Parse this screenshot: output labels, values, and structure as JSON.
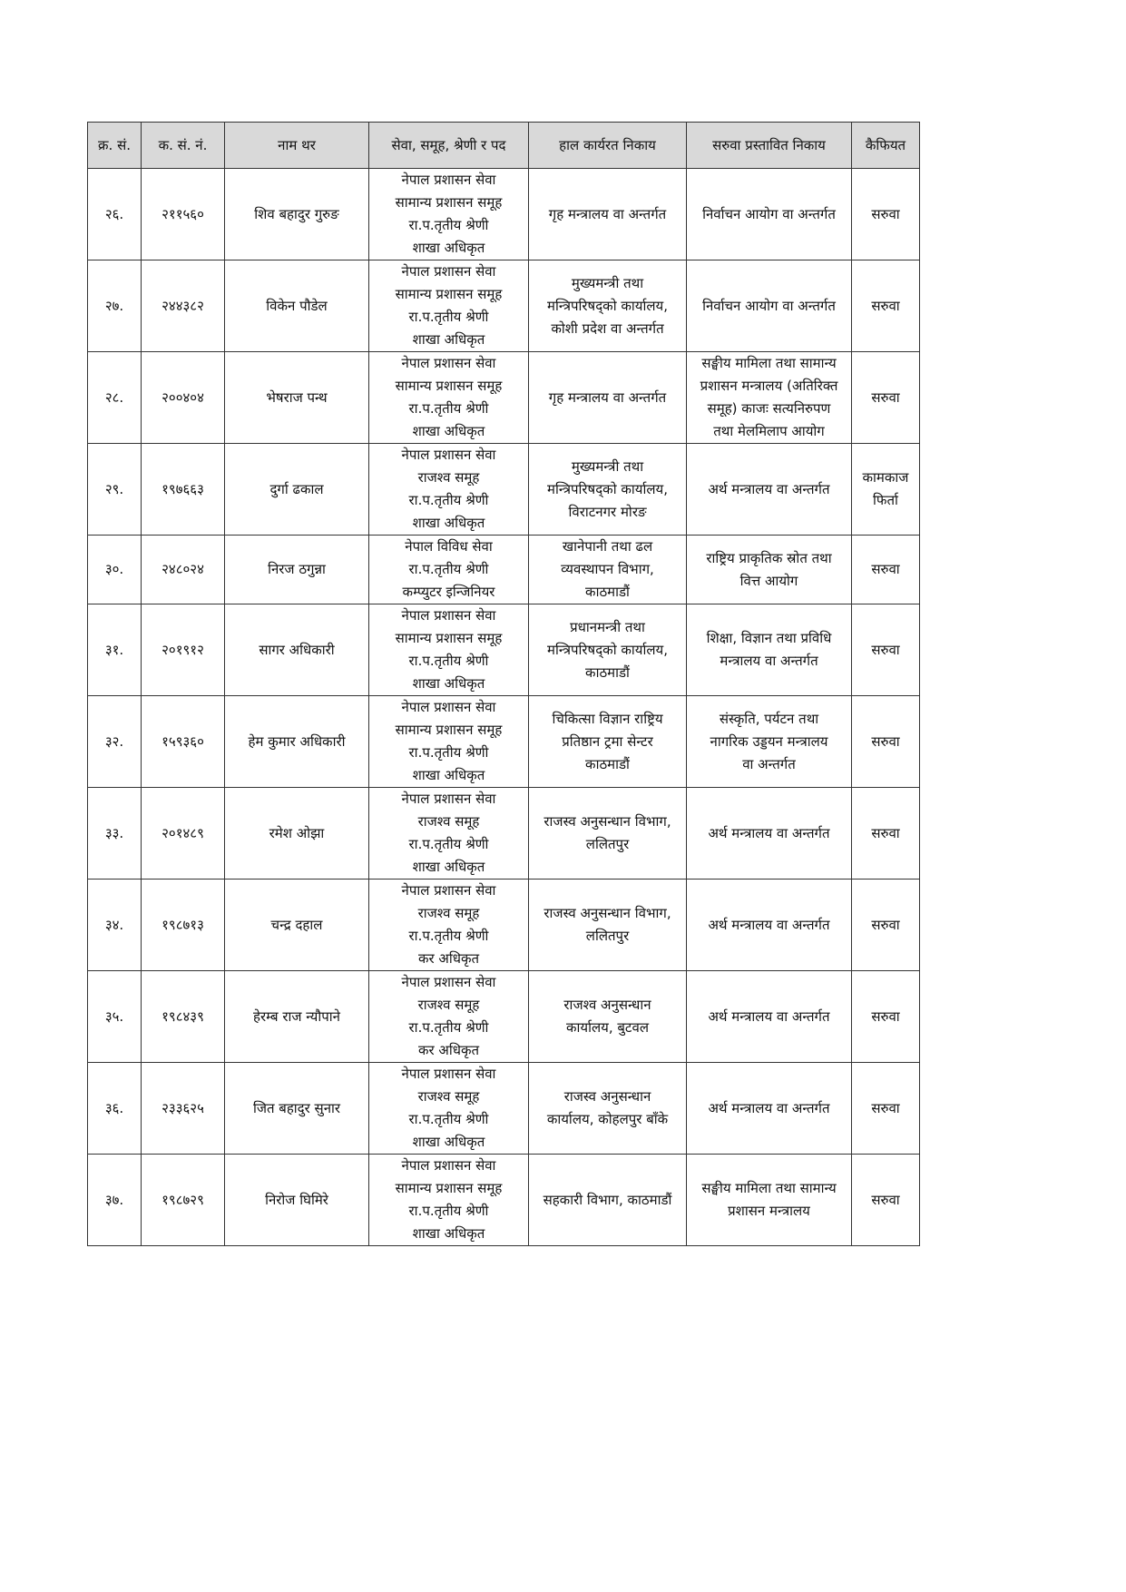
{
  "table": {
    "headers": [
      "क्र. सं.",
      "क. सं. नं.",
      "नाम थर",
      "सेवा, समूह, श्रेणी र पद",
      "हाल कार्यरत निकाय",
      "सरुवा प्रस्तावित निकाय",
      "कैफियत"
    ],
    "rows": [
      {
        "sn": "२६.",
        "id": "२११५६०",
        "name": "शिव बहादुर गुरुङ",
        "post": [
          "नेपाल प्रशासन सेवा",
          "सामान्य प्रशासन समूह",
          "रा.प.तृतीय श्रेणी",
          "शाखा अधिकृत"
        ],
        "current": [
          "गृह मन्त्रालय वा अन्तर्गत"
        ],
        "proposed": [
          "निर्वाचन आयोग वा अन्तर्गत"
        ],
        "remark": [
          "सरुवा"
        ]
      },
      {
        "sn": "२७.",
        "id": "२४४३८२",
        "name": "विकेन पौडेल",
        "post": [
          "नेपाल प्रशासन सेवा",
          "सामान्य प्रशासन समूह",
          "रा.प.तृतीय श्रेणी",
          "शाखा अधिकृत"
        ],
        "current": [
          "मुख्यमन्त्री तथा",
          "मन्त्रिपरिषद्को कार्यालय,",
          "कोशी प्रदेश वा अन्तर्गत"
        ],
        "proposed": [
          "निर्वाचन आयोग वा अन्तर्गत"
        ],
        "remark": [
          "सरुवा"
        ]
      },
      {
        "sn": "२८.",
        "id": "२००४०४",
        "name": "भेषराज पन्थ",
        "post": [
          "नेपाल प्रशासन सेवा",
          "सामान्य प्रशासन समूह",
          "रा.प.तृतीय श्रेणी",
          "शाखा अधिकृत"
        ],
        "current": [
          "गृह मन्त्रालय वा अन्तर्गत"
        ],
        "proposed": [
          "सङ्घीय मामिला तथा सामान्य",
          "प्रशासन मन्त्रालय (अतिरिक्त",
          "समूह) काजः सत्यनिरुपण",
          "तथा मेलमिलाप आयोग"
        ],
        "remark": [
          "सरुवा"
        ]
      },
      {
        "sn": "२९.",
        "id": "१९७६६३",
        "name": "दुर्गा ढकाल",
        "post": [
          "नेपाल प्रशासन सेवा",
          "राजश्व समूह",
          "रा.प.तृतीय श्रेणी",
          "शाखा अधिकृत"
        ],
        "current": [
          "मुख्यमन्त्री तथा",
          "मन्त्रिपरिषद्को कार्यालय,",
          "विराटनगर मोरङ"
        ],
        "proposed": [
          "अर्थ मन्त्रालय वा अन्तर्गत"
        ],
        "remark": [
          "कामकाज",
          "फिर्ता"
        ]
      },
      {
        "sn": "३०.",
        "id": "२४८०२४",
        "name": "निरज ठगुन्ना",
        "post": [
          "नेपाल विविध सेवा",
          "रा.प.तृतीय श्रेणी",
          "कम्प्युटर इन्जिनियर"
        ],
        "current": [
          "खानेपानी तथा ढल",
          "व्यवस्थापन विभाग,",
          "काठमाडौं"
        ],
        "proposed": [
          "राष्ट्रिय प्राकृतिक स्रोत तथा",
          "वित्त आयोग"
        ],
        "remark": [
          "सरुवा"
        ]
      },
      {
        "sn": "३१.",
        "id": "२०१९१२",
        "name": "सागर अधिकारी",
        "post": [
          "नेपाल प्रशासन सेवा",
          "सामान्य प्रशासन समूह",
          "रा.प.तृतीय श्रेणी",
          "शाखा अधिकृत"
        ],
        "current": [
          "प्रधानमन्त्री तथा",
          "मन्त्रिपरिषद्को कार्यालय,",
          "काठमाडौं"
        ],
        "proposed": [
          "शिक्षा, विज्ञान तथा प्रविधि",
          "मन्त्रालय वा अन्तर्गत"
        ],
        "remark": [
          "सरुवा"
        ]
      },
      {
        "sn": "३२.",
        "id": "१५९३६०",
        "name": "हेम कुमार अधिकारी",
        "post": [
          "नेपाल प्रशासन सेवा",
          "सामान्य प्रशासन समूह",
          "रा.प.तृतीय श्रेणी",
          "शाखा अधिकृत"
        ],
        "current": [
          "चिकित्सा विज्ञान राष्ट्रिय",
          "प्रतिष्ठान ट्रमा सेन्टर",
          "काठमाडौं"
        ],
        "proposed": [
          "संस्कृति, पर्यटन तथा",
          "नागरिक उड्डयन मन्त्रालय",
          "वा अन्तर्गत"
        ],
        "remark": [
          "सरुवा"
        ]
      },
      {
        "sn": "३३.",
        "id": "२०१४८९",
        "name": "रमेश ओझा",
        "post": [
          "नेपाल प्रशासन सेवा",
          "राजश्व समूह",
          "रा.प.तृतीय श्रेणी",
          "शाखा अधिकृत"
        ],
        "current": [
          "राजस्व अनुसन्धान विभाग,",
          "ललितपुर"
        ],
        "proposed": [
          "अर्थ मन्त्रालय वा अन्तर्गत"
        ],
        "remark": [
          "सरुवा"
        ]
      },
      {
        "sn": "३४.",
        "id": "१९८७१३",
        "name": "चन्द्र दहाल",
        "post": [
          "नेपाल प्रशासन सेवा",
          "राजश्व समूह",
          "रा.प.तृतीय श्रेणी",
          "कर अधिकृत"
        ],
        "current": [
          "राजस्व अनुसन्धान विभाग,",
          "ललितपुर"
        ],
        "proposed": [
          "अर्थ मन्त्रालय वा अन्तर्गत"
        ],
        "remark": [
          "सरुवा"
        ]
      },
      {
        "sn": "३५.",
        "id": "१९८४३९",
        "name": "हेरम्ब राज न्यौपाने",
        "post": [
          "नेपाल प्रशासन सेवा",
          "राजश्व समूह",
          "रा.प.तृतीय श्रेणी",
          "कर अधिकृत"
        ],
        "current": [
          "राजश्व अनुसन्धान",
          "कार्यालय, बुटवल"
        ],
        "proposed": [
          "अर्थ मन्त्रालय वा अन्तर्गत"
        ],
        "remark": [
          "सरुवा"
        ]
      },
      {
        "sn": "३६.",
        "id": "२३३६२५",
        "name": "जित बहादुर सुनार",
        "post": [
          "नेपाल प्रशासन सेवा",
          "राजश्व समूह",
          "रा.प.तृतीय श्रेणी",
          "शाखा अधिकृत"
        ],
        "current": [
          "राजस्व अनुसन्धान",
          "कार्यालय, कोहलपुर बाँके"
        ],
        "proposed": [
          "अर्थ मन्त्रालय वा अन्तर्गत"
        ],
        "remark": [
          "सरुवा"
        ]
      },
      {
        "sn": "३७.",
        "id": "१९८७२९",
        "name": "निरोज घिमिरे",
        "post": [
          "नेपाल प्रशासन सेवा",
          "सामान्य प्रशासन समूह",
          "रा.प.तृतीय श्रेणी",
          "शाखा अधिकृत"
        ],
        "current": [
          "सहकारी विभाग, काठमाडौं"
        ],
        "proposed": [
          "सङ्घीय मामिला तथा सामान्य",
          "प्रशासन मन्त्रालय"
        ],
        "remark": [
          "सरुवा"
        ]
      }
    ]
  }
}
